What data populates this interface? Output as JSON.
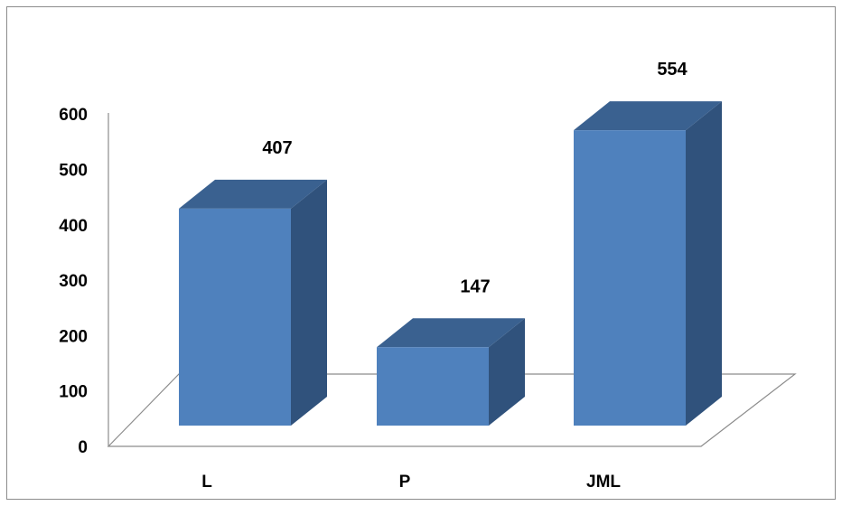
{
  "chart_data": {
    "type": "bar",
    "style": "3d-column",
    "categories": [
      "L",
      "P",
      "JML"
    ],
    "values": [
      407,
      147,
      554
    ],
    "data_labels": [
      "407",
      "147",
      "554"
    ],
    "yticks": [
      "0",
      "100",
      "200",
      "300",
      "400",
      "500",
      "600"
    ],
    "ylim": [
      0,
      600
    ],
    "title": "",
    "xlabel": "",
    "ylabel": "",
    "legend": "none",
    "gridlines": false,
    "colors": {
      "front": "#4f81bd",
      "side": "#30527c",
      "top": "#3a6190",
      "axis": "#8c8c8c"
    }
  }
}
